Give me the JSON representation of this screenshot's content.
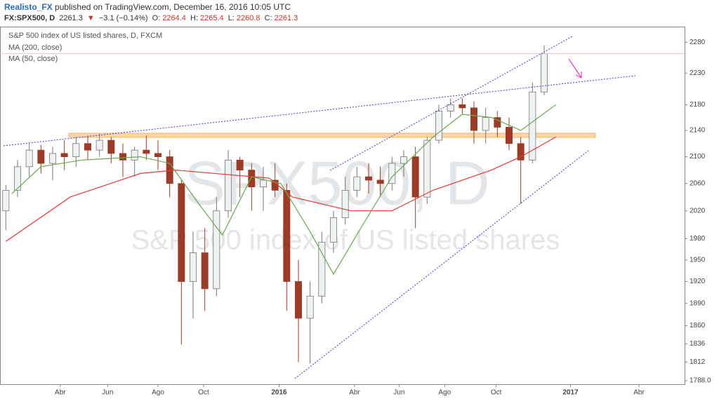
{
  "header": {
    "user": "Realisto_FX",
    "published": "published on TradingView.com, December 16, 2016 10:05 UTC",
    "symbol": "FX:SPX500, D",
    "last": "2261.3",
    "arrow": "▼",
    "change": "−3.1 (−0.14%)",
    "open_label": "O:",
    "open": "2264.4",
    "high_label": "H:",
    "high": "2265.4",
    "low_label": "L:",
    "low": "2260.8",
    "close_label": "C:",
    "close": "2261.3"
  },
  "chart_data": {
    "type": "candlestick",
    "title": "S&P 500 index of US listed shares, D, FXCM",
    "watermark": "SPX500, D",
    "watermark_subtitle": "S&P 500 index of US listed shares",
    "log_scale": true,
    "grid": false,
    "up_color": "#eef2f3",
    "down_color": "#9c3b28",
    "xlim": [
      0,
      117
    ],
    "ylim": [
      1783.5,
      2305.7
    ],
    "xticks": [
      {
        "value": 10.3,
        "label": "Abr"
      },
      {
        "value": 18.4,
        "label": "Jun"
      },
      {
        "value": 27,
        "label": "Ago"
      },
      {
        "value": 34.8,
        "label": "Oct"
      },
      {
        "value": 47.7,
        "label": "2016"
      },
      {
        "value": 60.6,
        "label": "Abr"
      },
      {
        "value": 68.2,
        "label": "Jun"
      },
      {
        "value": 76,
        "label": "Ago"
      },
      {
        "value": 84.8,
        "label": "Oct"
      },
      {
        "value": 97.5,
        "label": "2017"
      },
      {
        "value": 109.2,
        "label": "Abr"
      }
    ],
    "yticks": [
      2280,
      2230,
      2180,
      2140,
      2100,
      2060,
      2020,
      1980,
      1950,
      1920,
      1890,
      1860,
      1836,
      1812,
      {
        "value": 1788,
        "label": "1788.0"
      }
    ],
    "x": [
      1,
      3,
      5,
      7,
      9,
      11,
      13,
      15,
      17,
      19,
      21,
      23,
      25,
      27,
      29,
      31,
      33,
      35,
      37,
      39,
      41,
      43,
      45,
      47,
      49,
      51,
      53,
      55,
      57,
      59,
      61,
      63,
      65,
      67,
      69,
      71,
      73,
      75,
      77,
      79,
      81,
      83,
      85,
      87,
      89,
      91,
      93
    ],
    "open": [
      2020,
      2050,
      2085,
      2110,
      2090,
      2105,
      2100,
      2120,
      2110,
      2125,
      2105,
      2095,
      2110,
      2105,
      2100,
      2060,
      1920,
      1960,
      1910,
      2020,
      2095,
      2080,
      2055,
      2065,
      2050,
      1920,
      1870,
      1900,
      1975,
      2010,
      2050,
      2070,
      2065,
      2060,
      2090,
      2100,
      2040,
      2125,
      2170,
      2180,
      2175,
      2140,
      2160,
      2145,
      2120,
      2095,
      2200
    ],
    "high": [
      2058,
      2095,
      2120,
      2118,
      2115,
      2125,
      2130,
      2132,
      2135,
      2130,
      2120,
      2115,
      2132,
      2125,
      2110,
      2065,
      1990,
      1995,
      2040,
      2110,
      2100,
      2090,
      2085,
      2090,
      2060,
      1950,
      1920,
      1990,
      2020,
      2070,
      2085,
      2090,
      2085,
      2100,
      2110,
      2115,
      2130,
      2180,
      2190,
      2190,
      2185,
      2175,
      2170,
      2160,
      2130,
      2215,
      2275
    ],
    "low": [
      1992,
      2040,
      2070,
      2075,
      2065,
      2080,
      2085,
      2095,
      2100,
      2090,
      2070,
      2070,
      2095,
      2080,
      2040,
      1835,
      1870,
      1880,
      1900,
      2010,
      2040,
      2020,
      2020,
      2040,
      1880,
      1812,
      1810,
      1890,
      1960,
      2000,
      2040,
      2045,
      2040,
      2050,
      2070,
      1995,
      2030,
      2120,
      2160,
      2165,
      2120,
      2120,
      2130,
      2110,
      2030,
      2090,
      2195
    ],
    "close": [
      2050,
      2085,
      2110,
      2090,
      2105,
      2100,
      2120,
      2110,
      2125,
      2105,
      2095,
      2110,
      2105,
      2100,
      2060,
      1920,
      1960,
      1910,
      2020,
      2095,
      2080,
      2055,
      2065,
      2050,
      1920,
      1870,
      1900,
      1975,
      2010,
      2050,
      2070,
      2065,
      2060,
      2090,
      2100,
      2040,
      2125,
      2170,
      2180,
      2175,
      2140,
      2160,
      2145,
      2120,
      2095,
      2200,
      2261.3
    ],
    "lines": [
      {
        "name": "MA (200, close)",
        "color": "#e53935",
        "x": [
          1,
          12,
          24,
          30,
          46,
          50,
          60,
          67,
          74,
          84,
          89,
          95
        ],
        "values": [
          1976,
          2040,
          2075,
          2080,
          2068,
          2040,
          2020,
          2020,
          2050,
          2080,
          2100,
          2130
        ]
      },
      {
        "name": "MA (50, close)",
        "color": "#6aa84f",
        "x": [
          2,
          7,
          14,
          24,
          29,
          34,
          38,
          43,
          48,
          53,
          57,
          62,
          67,
          74,
          79,
          84,
          89,
          95
        ],
        "values": [
          2045,
          2085,
          2095,
          2100,
          2090,
          2030,
          1985,
          2070,
          2060,
          1990,
          1930,
          2000,
          2070,
          2130,
          2165,
          2160,
          2140,
          2180
        ]
      }
    ]
  }
}
